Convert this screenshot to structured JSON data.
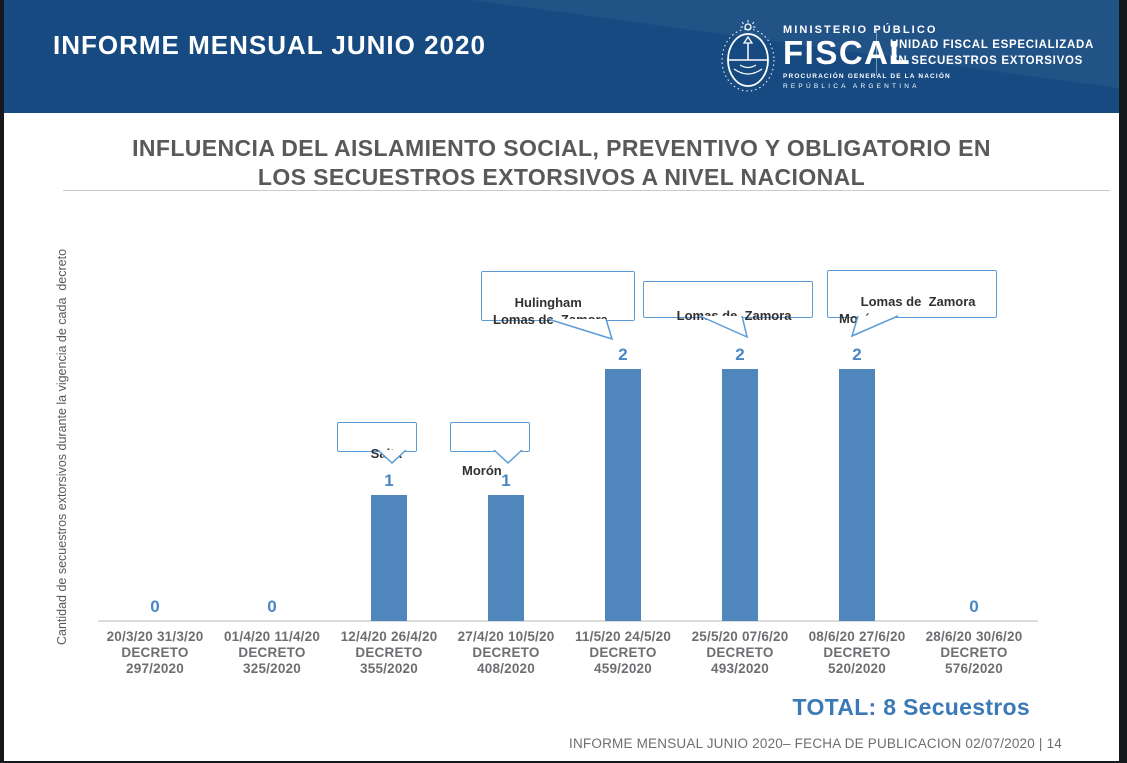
{
  "header": {
    "report_title": "INFORME MENSUAL JUNIO 2020",
    "logo": {
      "emblem_icon": "argentina-coat-of-arms",
      "org_small": "MINISTERIO PÚBLICO",
      "org_large": "FISCAL",
      "org_sub1": "PROCURACIÓN GENERAL DE LA NACIÓN",
      "org_sub2": "REPÚBLICA ARGENTINA"
    },
    "unit_line1": "UNIDAD FISCAL ESPECIALIZADA",
    "unit_line2": "EN SECUESTROS EXTORSIVOS"
  },
  "slide": {
    "title_line1": "INFLUENCIA DEL AISLAMIENTO SOCIAL, PREVENTIVO Y OBLIGATORIO EN",
    "title_line2": "LOS SECUESTROS EXTORSIVOS A NIVEL NACIONAL"
  },
  "chart_data": {
    "type": "bar",
    "title": "INFLUENCIA DEL AISLAMIENTO SOCIAL, PREVENTIVO Y OBLIGATORIO EN LOS SECUESTROS EXTORSIVOS A NIVEL NACIONAL",
    "xlabel": "",
    "ylabel": "Cantidad de secuestros extorsivos durante la vigencia de cada  decreto",
    "categories": [
      [
        "20/3/20 31/3/20",
        "DECRETO",
        "297/2020"
      ],
      [
        "01/4/20 11/4/20",
        "DECRETO",
        "325/2020"
      ],
      [
        "12/4/20 26/4/20",
        "DECRETO",
        "355/2020"
      ],
      [
        "27/4/20 10/5/20",
        "DECRETO",
        "408/2020"
      ],
      [
        "11/5/20 24/5/20",
        "DECRETO",
        "459/2020"
      ],
      [
        "25/5/20 07/6/20",
        "DECRETO",
        "493/2020"
      ],
      [
        "08/6/20 27/6/20",
        "DECRETO",
        "520/2020"
      ],
      [
        "28/6/20 30/6/20",
        "DECRETO",
        "576/2020"
      ]
    ],
    "values": [
      0,
      0,
      1,
      1,
      2,
      2,
      2,
      0
    ],
    "ylim": [
      0,
      2
    ],
    "grid": false,
    "legend": "none",
    "bar_color": "#4f86bc",
    "value_label_color": "#4a86c5",
    "annotations": [
      {
        "text": "Salta",
        "category_index": 2
      },
      {
        "text": "Morón",
        "category_index": 3
      },
      {
        "text": "Hulingham\nLomas de  Zamora",
        "category_index": 4
      },
      {
        "text": "Lomas de  Zamora",
        "category_index": 5
      },
      {
        "text": "Lomas de  Zamora\nMorón",
        "category_index": 6
      }
    ]
  },
  "total_label": "TOTAL: 8 Secuestros",
  "footer": {
    "text": "INFORME MENSUAL JUNIO 2020– FECHA DE PUBLICACION 02/07/2020 | 14"
  }
}
